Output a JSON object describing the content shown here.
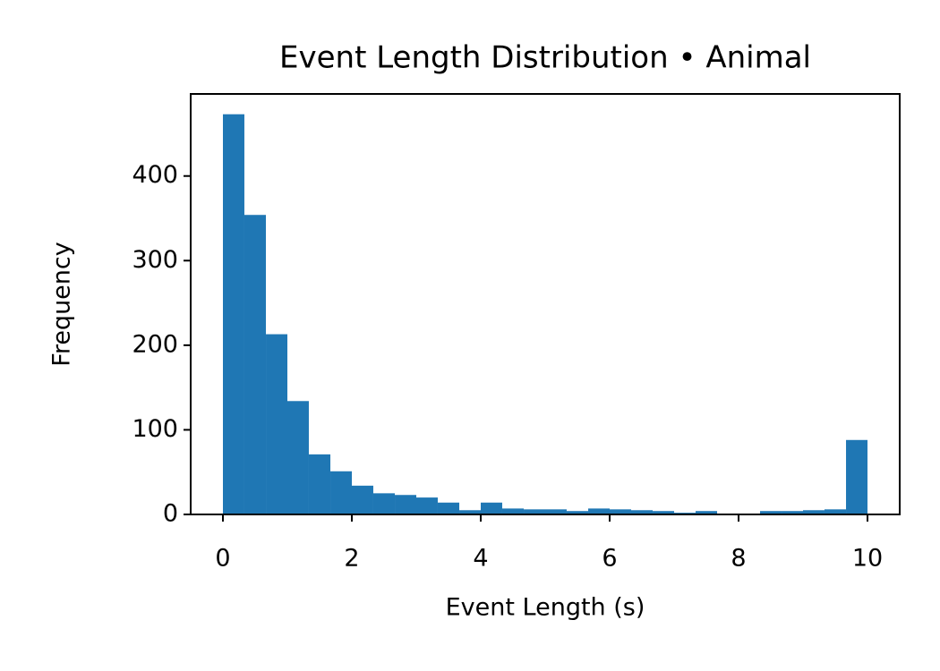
{
  "chart_data": {
    "type": "histogram",
    "title": "Event Length Distribution • Animal",
    "xlabel": "Event Length (s)",
    "ylabel": "Frequency",
    "color": "#1f77b4",
    "bins": [
      0,
      0.333,
      0.667,
      1,
      1.333,
      1.667,
      2,
      2.333,
      2.667,
      3,
      3.333,
      3.667,
      4,
      4.333,
      4.667,
      5,
      5.333,
      5.667,
      6,
      6.333,
      6.667,
      7,
      7.333,
      7.667,
      8,
      8.333,
      8.667,
      9,
      9.333,
      9.667,
      10
    ],
    "values": [
      473,
      354,
      213,
      134,
      71,
      51,
      34,
      25,
      23,
      20,
      14,
      5,
      14,
      7,
      6,
      6,
      4,
      7,
      6,
      5,
      4,
      2,
      4,
      0,
      0,
      4,
      4,
      5,
      6,
      88
    ],
    "xlim": [
      -0.5,
      10.5
    ],
    "ylim": [
      0,
      497
    ],
    "xticks": [
      0,
      2,
      4,
      6,
      8,
      10
    ],
    "yticks": [
      0,
      100,
      200,
      300,
      400
    ]
  }
}
